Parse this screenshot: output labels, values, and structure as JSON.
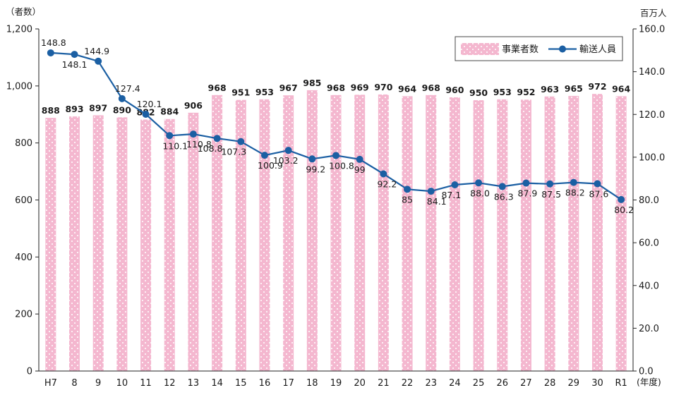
{
  "chart_data": {
    "type": "bar+line",
    "left_unit_label": "（者数）",
    "right_unit_label": "百万人",
    "x_unit_label": "(年度)",
    "categories": [
      "H7",
      "8",
      "9",
      "10",
      "11",
      "12",
      "13",
      "14",
      "15",
      "16",
      "17",
      "18",
      "19",
      "20",
      "21",
      "22",
      "23",
      "24",
      "25",
      "26",
      "27",
      "28",
      "29",
      "30",
      "R1"
    ],
    "series": [
      {
        "name": "事業者数",
        "type": "bar",
        "axis": "left",
        "color": "#f4b7cf",
        "values": [
          888,
          893,
          897,
          890,
          882,
          884,
          906,
          968,
          951,
          953,
          967,
          985,
          968,
          969,
          970,
          964,
          968,
          960,
          950,
          953,
          952,
          963,
          965,
          972,
          964
        ],
        "labels": [
          "888",
          "893",
          "897",
          "890",
          "882",
          "884",
          "906",
          "968",
          "951",
          "953",
          "967",
          "985",
          "968",
          "969",
          "970",
          "964",
          "968",
          "960",
          "950",
          "953",
          "952",
          "963",
          "965",
          "972",
          "964"
        ]
      },
      {
        "name": "輸送人員",
        "type": "line",
        "axis": "right",
        "color": "#1b5fa3",
        "values": [
          148.8,
          148.1,
          144.9,
          127.4,
          120.1,
          110.1,
          110.8,
          108.8,
          107.3,
          100.9,
          103.2,
          99.2,
          100.8,
          99,
          92.2,
          85,
          84.1,
          87.1,
          88.0,
          86.3,
          87.9,
          87.5,
          88.2,
          87.6,
          80.2
        ],
        "labels": [
          "148.8",
          "148.1",
          "144.9",
          "127.4",
          "120.1",
          "110.1",
          "110.8",
          "108.8",
          "107.3",
          "100.9",
          "103.2",
          "99.2",
          "100.8",
          "99",
          "92.2",
          "85",
          "84.1",
          "87.1",
          "88.0",
          "86.3",
          "87.9",
          "87.5",
          "88.2",
          "87.6",
          "80.2"
        ]
      }
    ],
    "left_axis": {
      "min": 0,
      "max": 1200,
      "ticks": [
        "0",
        "200",
        "400",
        "600",
        "800",
        "1,000",
        "1,200"
      ]
    },
    "right_axis": {
      "min": 0,
      "max": 160,
      "ticks": [
        "0.0",
        "20.0",
        "40.0",
        "60.0",
        "80.0",
        "100.0",
        "120.0",
        "140.0",
        "160.0"
      ]
    },
    "legend_position": "top-right",
    "grid": false
  }
}
